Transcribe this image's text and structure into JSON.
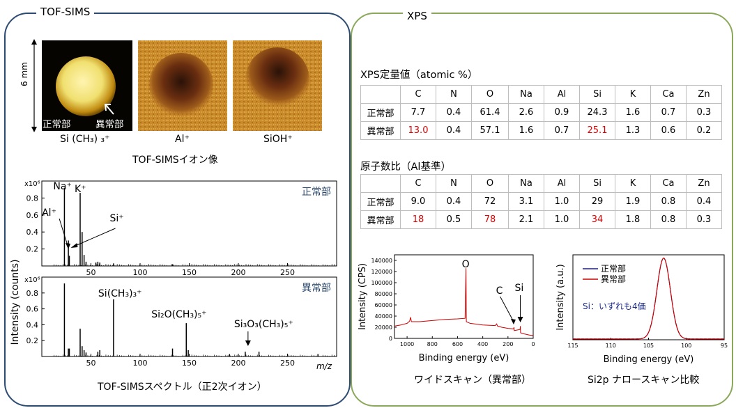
{
  "tof_sims": {
    "title": "TOF-SIMS",
    "scale_label": "6 mm",
    "images": [
      {
        "ion": "Si (CH₃) ₃⁺",
        "normal_label": "正常部",
        "abnormal_label": "異常部"
      },
      {
        "ion": "Al⁺"
      },
      {
        "ion": "SiOH⁺"
      }
    ],
    "image_caption": "TOF-SIMSイオン像",
    "spectra_caption": "TOF-SIMSスペクトル（正2次イオン）",
    "y_axis_label": "Intensity (counts)",
    "x_axis_label": "m/z",
    "colors": {
      "panel_border": "#2d4a72",
      "region_label": "#2d4a72"
    }
  },
  "xps": {
    "title": "XPS",
    "colors": {
      "panel_border": "#8ba85a",
      "highlight": "#e00000",
      "normal_line": "#1a1aaa",
      "abnormal_line": "#cc0000"
    },
    "quant_title": "XPS定量値（atomic %）",
    "ratio_title": "原子数比（Al基準）",
    "columns": [
      "",
      "C",
      "N",
      "O",
      "Na",
      "Al",
      "Si",
      "K",
      "Ca",
      "Zn"
    ],
    "quant_rows": [
      {
        "label": "正常部",
        "values": [
          "7.7",
          "0.4",
          "61.4",
          "2.6",
          "0.9",
          "24.3",
          "1.6",
          "0.7",
          "0.3"
        ],
        "highlight": []
      },
      {
        "label": "異常部",
        "values": [
          "13.0",
          "0.4",
          "57.1",
          "1.6",
          "0.7",
          "25.1",
          "1.3",
          "0.6",
          "0.2"
        ],
        "highlight": [
          0,
          5
        ]
      }
    ],
    "ratio_rows": [
      {
        "label": "正常部",
        "values": [
          "9.0",
          "0.4",
          "72",
          "3.1",
          "1.0",
          "29",
          "1.9",
          "0.8",
          "0.4"
        ],
        "highlight": []
      },
      {
        "label": "異常部",
        "values": [
          "18",
          "0.5",
          "78",
          "2.1",
          "1.0",
          "34",
          "1.8",
          "0.8",
          "0.3"
        ],
        "highlight": [
          0,
          2,
          5
        ]
      }
    ],
    "wide_caption": "ワイドスキャン（異常部）",
    "narrow_caption": "Si2p ナロースキャン比較"
  },
  "chart_data": [
    {
      "type": "bar",
      "title": "正常部",
      "ylabel": "Intensity (counts)",
      "y_multiplier": "x10⁶",
      "xlim": [
        0,
        300
      ],
      "ylim": [
        0,
        1.0
      ],
      "x_ticks": [
        50,
        100,
        150,
        200,
        250
      ],
      "y_ticks": [
        0.2,
        0.4,
        0.6,
        0.8
      ],
      "peaks": [
        [
          23,
          0.92
        ],
        [
          27,
          0.3
        ],
        [
          28,
          0.12
        ],
        [
          39,
          0.86
        ],
        [
          41,
          0.4
        ],
        [
          43,
          0.13
        ],
        [
          45,
          0.05
        ],
        [
          55,
          0.04
        ],
        [
          57,
          0.05
        ],
        [
          59,
          0.04
        ],
        [
          73,
          0.03
        ],
        [
          133,
          0.02
        ]
      ],
      "annotations": [
        {
          "text": "Na⁺",
          "x": 23
        },
        {
          "text": "K⁺",
          "x": 39
        },
        {
          "text": "Al⁺",
          "x": 27
        },
        {
          "text": "Si⁺",
          "x": 28
        }
      ]
    },
    {
      "type": "bar",
      "title": "異常部",
      "xlabel": "m/z",
      "y_multiplier": "x10⁶",
      "xlim": [
        0,
        300
      ],
      "ylim": [
        0,
        1.0
      ],
      "x_ticks": [
        50,
        100,
        150,
        200,
        250
      ],
      "y_ticks": [
        0.2,
        0.4,
        0.6,
        0.8
      ],
      "peaks": [
        [
          23,
          0.92
        ],
        [
          27,
          0.1
        ],
        [
          28,
          0.1
        ],
        [
          39,
          0.35
        ],
        [
          41,
          0.13
        ],
        [
          43,
          0.08
        ],
        [
          45,
          0.05
        ],
        [
          57,
          0.06
        ],
        [
          59,
          0.08
        ],
        [
          73,
          0.72
        ],
        [
          133,
          0.1
        ],
        [
          147,
          0.42
        ],
        [
          149,
          0.08
        ],
        [
          191,
          0.03
        ],
        [
          207,
          0.06
        ],
        [
          221,
          0.06
        ],
        [
          281,
          0.03
        ]
      ],
      "annotations": [
        {
          "text": "Si(CH₃)₃⁺",
          "x": 73
        },
        {
          "text": "Si₂O(CH₃)₅⁺",
          "x": 147
        },
        {
          "text": "Si₃O₃(CH₃)₅⁺",
          "x": 207
        }
      ]
    },
    {
      "type": "line",
      "title": "",
      "xlabel": "Binding energy (eV)",
      "ylabel": "Intensity (CPS)",
      "xlim": [
        1100,
        0
      ],
      "ylim": [
        0,
        150000
      ],
      "x_ticks": [
        1000,
        800,
        600,
        400,
        200,
        0
      ],
      "y_ticks": [
        0,
        20000,
        40000,
        60000,
        80000,
        100000,
        120000,
        140000
      ],
      "series": [
        {
          "values": [
            [
              1100,
              22000
            ],
            [
              1050,
              24000
            ],
            [
              1000,
              27000
            ],
            [
              980,
              31000
            ],
            [
              972,
              38000
            ],
            [
              966,
              30000
            ],
            [
              900,
              30000
            ],
            [
              800,
              32000
            ],
            [
              700,
              34000
            ],
            [
              600,
              35000
            ],
            [
              540,
              36000
            ],
            [
              533,
              126000
            ],
            [
              530,
              30000
            ],
            [
              500,
              27000
            ],
            [
              400,
              24000
            ],
            [
              300,
              23000
            ],
            [
              290,
              26000
            ],
            [
              282,
              22000
            ],
            [
              250,
              20000
            ],
            [
              200,
              18000
            ],
            [
              155,
              17000
            ],
            [
              152,
              20000
            ],
            [
              150,
              14000
            ],
            [
              104,
              16000
            ],
            [
              102,
              22000
            ],
            [
              100,
              10000
            ],
            [
              70,
              8000
            ],
            [
              30,
              6000
            ],
            [
              0,
              5000
            ]
          ]
        }
      ],
      "annotations": [
        {
          "text": "O",
          "x": 533
        },
        {
          "text": "C",
          "x": 284
        },
        {
          "text": "Si",
          "x": 102
        }
      ]
    },
    {
      "type": "line",
      "title": "",
      "xlabel": "Binding energy (eV)",
      "ylabel": "Intensity (a.u.)",
      "xlim": [
        115,
        95
      ],
      "ylim": [
        0,
        1.05
      ],
      "x_ticks": [
        115,
        110,
        105,
        100,
        95
      ],
      "series": [
        {
          "name": "正常部",
          "peak_center": 103.0,
          "fwhm": 2.1
        },
        {
          "name": "異常部",
          "peak_center": 103.0,
          "fwhm": 2.1
        }
      ],
      "annotations": [
        {
          "text": "Si：いずれも4価"
        }
      ]
    }
  ]
}
